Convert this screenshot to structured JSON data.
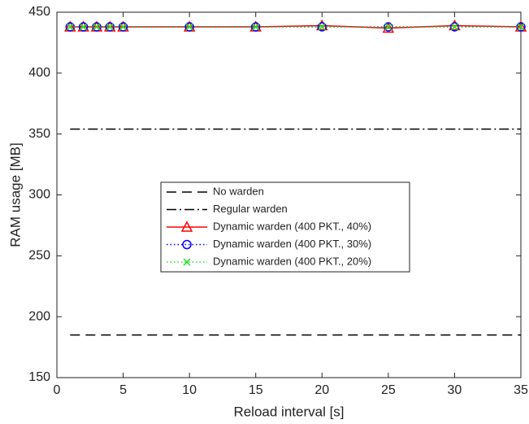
{
  "chart_data": {
    "type": "line",
    "x_label": "Reload interval [s]",
    "y_label": "RAM usage [MB]",
    "xlim": [
      0,
      35
    ],
    "xticks": [
      0,
      5,
      10,
      15,
      20,
      25,
      30,
      35
    ],
    "ylim": [
      150,
      450
    ],
    "yticks": [
      150,
      200,
      250,
      300,
      350,
      400,
      450
    ],
    "grid": false,
    "legend": "center",
    "series": [
      {
        "name": "No warden",
        "color": "#000000",
        "dash": "dashed",
        "marker": "none",
        "x": [
          1,
          35
        ],
        "values": [
          185,
          185
        ]
      },
      {
        "name": "Regular warden",
        "color": "#000000",
        "dash": "dashdot",
        "marker": "none",
        "x": [
          1,
          35
        ],
        "values": [
          354,
          354
        ]
      },
      {
        "name": "Dynamic warden (400 PKT., 40%)",
        "color": "#ff0000",
        "dash": "solid",
        "marker": "triangle",
        "x": [
          1,
          2,
          3,
          4,
          5,
          10,
          15,
          20,
          25,
          30,
          35
        ],
        "values": [
          438,
          438,
          438,
          438,
          438,
          438,
          438,
          439,
          437,
          439,
          438
        ]
      },
      {
        "name": "Dynamic warden (400 PKT., 30%)",
        "color": "#0000ff",
        "dash": "dotted",
        "marker": "circle",
        "x": [
          1,
          2,
          3,
          4,
          5,
          10,
          15,
          20,
          25,
          30,
          35
        ],
        "values": [
          438,
          438,
          438,
          438,
          438,
          438,
          438,
          438,
          438,
          438,
          438
        ]
      },
      {
        "name": "Dynamic warden (400 PKT., 20%)",
        "color": "#22dd22",
        "dash": "dotted",
        "marker": "x",
        "x": [
          1,
          2,
          3,
          4,
          5,
          10,
          15,
          20,
          25,
          30,
          35
        ],
        "values": [
          438,
          438,
          438,
          438,
          438,
          438,
          438,
          438,
          438,
          438,
          438
        ]
      }
    ]
  }
}
